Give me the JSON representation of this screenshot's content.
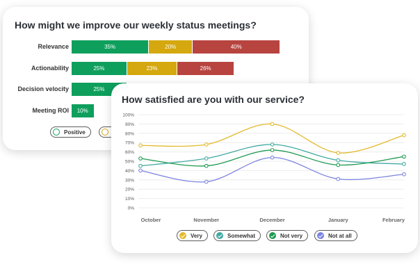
{
  "card1": {
    "title": "How might we improve our weekly status meetings?",
    "legend": [
      {
        "label": "Positive",
        "color": "#0e9f5d",
        "icon": "smiley-face-icon"
      },
      {
        "label": "",
        "color": "#d4a80e",
        "icon": "neutral-face-icon"
      }
    ]
  },
  "card2": {
    "title": "How satisfied are you with our service?",
    "legend": [
      {
        "label": "Very",
        "color": "#e3b92c",
        "icon": "check-icon"
      },
      {
        "label": "Somewhat",
        "color": "#41a9a2",
        "icon": "check-icon"
      },
      {
        "label": "Not very",
        "color": "#1e9a52",
        "icon": "check-icon"
      },
      {
        "label": "Not at all",
        "color": "#7b83e0",
        "icon": "check-icon"
      }
    ]
  },
  "chart_data": [
    {
      "type": "bar",
      "orientation": "horizontal-stacked",
      "title": "How might we improve our weekly status meetings?",
      "categories": [
        "Relevance",
        "Actionability",
        "Decision velocity",
        "Meeting ROI"
      ],
      "series": [
        {
          "name": "Positive",
          "color": "#0e9f5d",
          "values": [
            35,
            25,
            25,
            10
          ],
          "labels": [
            "35%",
            "25%",
            "25%",
            "10%"
          ]
        },
        {
          "name": "",
          "color": "#d4a80e",
          "values": [
            20,
            23,
            null,
            null
          ],
          "labels": [
            "20%",
            "23%",
            "",
            ""
          ]
        },
        {
          "name": "",
          "color": "#b8443f",
          "values": [
            40,
            26,
            null,
            null
          ],
          "labels": [
            "40%",
            "26%",
            "",
            ""
          ]
        }
      ],
      "scale_max": 100
    },
    {
      "type": "line",
      "title": "How satisfied are you with our service?",
      "categories": [
        "October",
        "November",
        "December",
        "January",
        "February"
      ],
      "yticks": [
        "100%",
        "90%",
        "80%",
        "70%",
        "60%",
        "50%",
        "40%",
        "30%",
        "20%",
        "10%",
        "0%"
      ],
      "ylim": [
        0,
        100
      ],
      "grid": true,
      "legend_position": "bottom",
      "series": [
        {
          "name": "Very",
          "color": "#e3b92c",
          "values": [
            67,
            68,
            90,
            59,
            78
          ]
        },
        {
          "name": "Somewhat",
          "color": "#41a9a2",
          "values": [
            45,
            53,
            68,
            51,
            47
          ]
        },
        {
          "name": "Not very",
          "color": "#1e9a52",
          "values": [
            53,
            45,
            62,
            46,
            55
          ]
        },
        {
          "name": "Not at all",
          "color": "#7b83e0",
          "values": [
            40,
            28,
            54,
            31,
            36
          ]
        }
      ]
    }
  ]
}
